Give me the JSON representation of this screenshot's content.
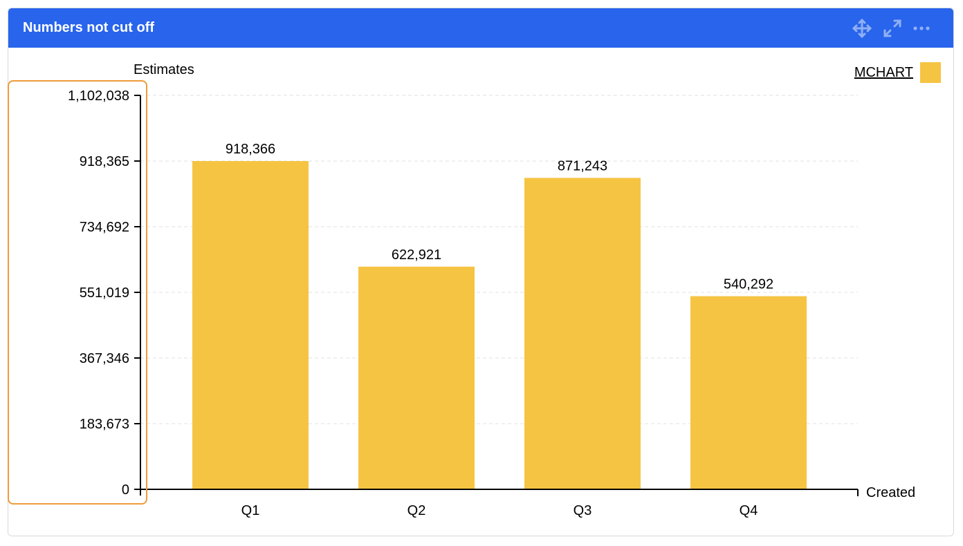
{
  "card": {
    "title": "Numbers not cut off",
    "icons": [
      "move-icon",
      "expand-icon",
      "more-icon"
    ]
  },
  "legend": {
    "label": "MCHART",
    "color": "#f6c443"
  },
  "colors": {
    "header": "#2864ec",
    "bar": "#f6c443",
    "highlight": "#ef9b3a"
  },
  "chart_data": {
    "type": "bar",
    "title": "",
    "xlabel": "Created",
    "ylabel": "Estimates",
    "categories": [
      "Q1",
      "Q2",
      "Q3",
      "Q4"
    ],
    "series": [
      {
        "name": "MCHART",
        "values": [
          918366,
          622921,
          871243,
          540292
        ]
      }
    ],
    "data_labels": [
      "918,366",
      "622,921",
      "871,243",
      "540,292"
    ],
    "yticks": [
      0,
      183673,
      367346,
      551019,
      734692,
      918365,
      1102038
    ],
    "ytick_labels": [
      "0",
      "183,673",
      "367,346",
      "551,019",
      "734,692",
      "918,365",
      "1,102,038"
    ],
    "ylim": [
      0,
      1102038
    ],
    "grid": true,
    "legend_position": "top-right"
  }
}
